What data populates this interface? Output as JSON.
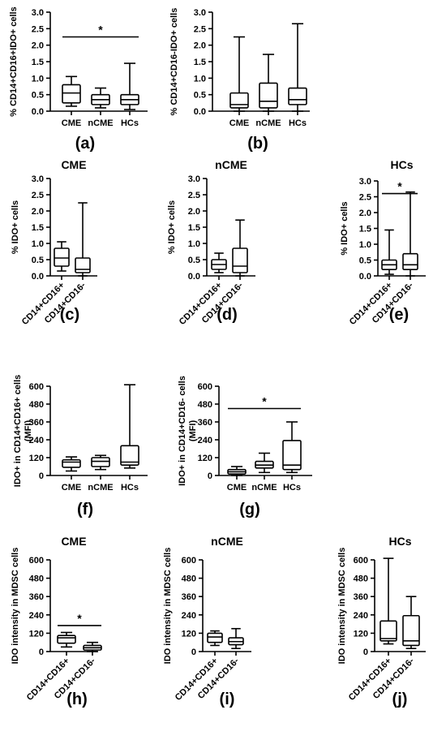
{
  "chart_data": [
    {
      "id": "a",
      "type": "boxplot",
      "title": "",
      "panel_label": "(a)",
      "ylabel": "% CD14+CD16+IDO+ cells",
      "categories": [
        "CME",
        "nCME",
        "HCs"
      ],
      "ylim": [
        0,
        3.0
      ],
      "yticks": [
        "0.0",
        "0.5",
        "1.0",
        "1.5",
        "2.0",
        "2.5",
        "3.0"
      ],
      "boxes": [
        {
          "min": 0.15,
          "q1": 0.25,
          "median": 0.55,
          "q3": 0.8,
          "max": 1.05
        },
        {
          "min": 0.1,
          "q1": 0.2,
          "median": 0.35,
          "q3": 0.5,
          "max": 0.7
        },
        {
          "min": 0.05,
          "q1": 0.2,
          "median": 0.35,
          "q3": 0.5,
          "max": 1.45
        }
      ],
      "significance": [
        {
          "from": 0,
          "to": 2,
          "level": 2.25,
          "label": "*"
        }
      ]
    },
    {
      "id": "b",
      "type": "boxplot",
      "title": "",
      "panel_label": "(b)",
      "ylabel": "% CD14+CD16-IDO+ cells",
      "categories": [
        "CME",
        "nCME",
        "HCs"
      ],
      "ylim": [
        0,
        3.0
      ],
      "yticks": [
        "0.0",
        "0.5",
        "1.0",
        "1.5",
        "2.0",
        "2.5",
        "3.0"
      ],
      "boxes": [
        {
          "min": 0.0,
          "q1": 0.1,
          "median": 0.2,
          "q3": 0.55,
          "max": 2.25
        },
        {
          "min": 0.0,
          "q1": 0.1,
          "median": 0.3,
          "q3": 0.85,
          "max": 1.72
        },
        {
          "min": 0.0,
          "q1": 0.2,
          "median": 0.35,
          "q3": 0.7,
          "max": 2.65
        }
      ],
      "significance": []
    },
    {
      "id": "c",
      "type": "boxplot",
      "title": "CME",
      "panel_label": "(c)",
      "ylabel": "% IDO+ cells",
      "categories": [
        "CD14+CD16+",
        "CD14+CD16-"
      ],
      "ylim": [
        0,
        3.0
      ],
      "yticks": [
        "0.0",
        "0.5",
        "1.0",
        "1.5",
        "2.0",
        "2.5",
        "3.0"
      ],
      "boxes": [
        {
          "min": 0.15,
          "q1": 0.3,
          "median": 0.55,
          "q3": 0.85,
          "max": 1.05
        },
        {
          "min": 0.0,
          "q1": 0.1,
          "median": 0.2,
          "q3": 0.55,
          "max": 2.25
        }
      ],
      "significance": []
    },
    {
      "id": "d",
      "type": "boxplot",
      "title": "nCME",
      "panel_label": "(d)",
      "ylabel": "% IDO+ cells",
      "categories": [
        "CD14+CD16+",
        "CD14+CD16-"
      ],
      "ylim": [
        0,
        3.0
      ],
      "yticks": [
        "0.0",
        "0.5",
        "1.0",
        "1.5",
        "2.0",
        "2.5",
        "3.0"
      ],
      "boxes": [
        {
          "min": 0.1,
          "q1": 0.2,
          "median": 0.35,
          "q3": 0.5,
          "max": 0.7
        },
        {
          "min": 0.0,
          "q1": 0.1,
          "median": 0.3,
          "q3": 0.85,
          "max": 1.72
        }
      ],
      "significance": []
    },
    {
      "id": "e",
      "type": "boxplot",
      "title": "HCs",
      "panel_label": "(e)",
      "ylabel": "% IDO+ cells",
      "categories": [
        "CD14+CD16+",
        "CD14+CD16-"
      ],
      "ylim": [
        0,
        3.0
      ],
      "yticks": [
        "0.0",
        "0.5",
        "1.0",
        "1.5",
        "2.0",
        "2.5",
        "3.0"
      ],
      "boxes": [
        {
          "min": 0.05,
          "q1": 0.2,
          "median": 0.35,
          "q3": 0.5,
          "max": 1.45
        },
        {
          "min": 0.0,
          "q1": 0.2,
          "median": 0.35,
          "q3": 0.7,
          "max": 2.65
        }
      ],
      "significance": [
        {
          "from": 0,
          "to": 1,
          "level": 2.6,
          "label": "*"
        }
      ]
    },
    {
      "id": "f",
      "type": "boxplot",
      "title": "",
      "panel_label": "(f)",
      "ylabel": [
        "IDO+ in CD14+CD16+ cells",
        "(MFI)"
      ],
      "categories": [
        "CME",
        "nCME",
        "HCs"
      ],
      "ylim": [
        0,
        600
      ],
      "yticks": [
        "0",
        "120",
        "240",
        "360",
        "480",
        "600"
      ],
      "boxes": [
        {
          "min": 30,
          "q1": 55,
          "median": 90,
          "q3": 105,
          "max": 125
        },
        {
          "min": 40,
          "q1": 60,
          "median": 95,
          "q3": 120,
          "max": 135
        },
        {
          "min": 50,
          "q1": 70,
          "median": 90,
          "q3": 200,
          "max": 610
        }
      ],
      "significance": []
    },
    {
      "id": "g",
      "type": "boxplot",
      "title": "",
      "panel_label": "(g)",
      "ylabel": [
        "IDO+ in CD14+CD16- cells",
        "(MFI)"
      ],
      "categories": [
        "CME",
        "nCME",
        "HCs"
      ],
      "ylim": [
        0,
        600
      ],
      "yticks": [
        "0",
        "120",
        "240",
        "360",
        "480",
        "600"
      ],
      "boxes": [
        {
          "min": 0,
          "q1": 10,
          "median": 25,
          "q3": 40,
          "max": 60
        },
        {
          "min": 20,
          "q1": 50,
          "median": 70,
          "q3": 95,
          "max": 150
        },
        {
          "min": 20,
          "q1": 40,
          "median": 70,
          "q3": 235,
          "max": 360
        }
      ],
      "significance": [
        {
          "from": 0,
          "to": 2,
          "level": 450,
          "label": "*"
        }
      ]
    },
    {
      "id": "h",
      "type": "boxplot",
      "title": "CME",
      "panel_label": "(h)",
      "ylabel": "IDO intensity in MDSC cells",
      "categories": [
        "CD14+CD16+",
        "CD14+CD16-"
      ],
      "ylim": [
        0,
        600
      ],
      "yticks": [
        "0",
        "120",
        "240",
        "360",
        "480",
        "600"
      ],
      "boxes": [
        {
          "min": 30,
          "q1": 55,
          "median": 90,
          "q3": 105,
          "max": 125
        },
        {
          "min": 0,
          "q1": 10,
          "median": 25,
          "q3": 40,
          "max": 60
        }
      ],
      "significance": [
        {
          "from": 0,
          "to": 1,
          "level": 170,
          "label": "*"
        }
      ]
    },
    {
      "id": "i",
      "type": "boxplot",
      "title": "nCME",
      "panel_label": "(i)",
      "ylabel": "IDO intensity in MDSC cells",
      "categories": [
        "CD14+CD16+",
        "CD14+CD16-"
      ],
      "ylim": [
        0,
        600
      ],
      "yticks": [
        "0",
        "120",
        "240",
        "360",
        "480",
        "600"
      ],
      "boxes": [
        {
          "min": 40,
          "q1": 60,
          "median": 95,
          "q3": 120,
          "max": 135
        },
        {
          "min": 20,
          "q1": 45,
          "median": 65,
          "q3": 90,
          "max": 150
        }
      ],
      "significance": []
    },
    {
      "id": "j",
      "type": "boxplot",
      "title": "HCs",
      "panel_label": "(j)",
      "ylabel": "IDO intensity in MDSC cells",
      "categories": [
        "CD14+CD16+",
        "CD14+CD16-"
      ],
      "ylim": [
        0,
        600
      ],
      "yticks": [
        "0",
        "120",
        "240",
        "360",
        "480",
        "600"
      ],
      "boxes": [
        {
          "min": 50,
          "q1": 70,
          "median": 85,
          "q3": 200,
          "max": 610
        },
        {
          "min": 20,
          "q1": 40,
          "median": 70,
          "q3": 235,
          "max": 360
        }
      ],
      "significance": []
    }
  ]
}
